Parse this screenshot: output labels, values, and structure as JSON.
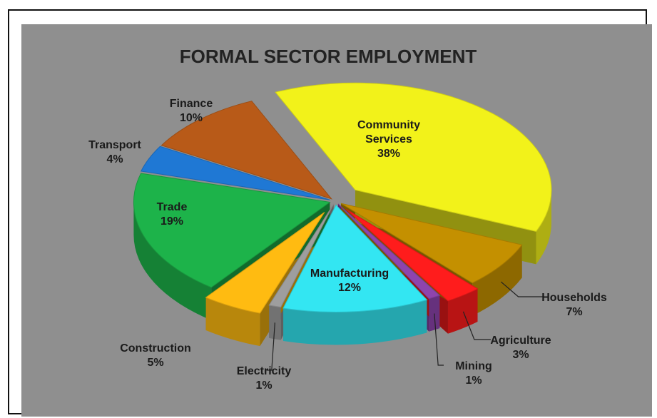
{
  "chart_data": {
    "type": "pie",
    "title": "FORMAL SECTOR EMPLOYMENT",
    "categories": [
      "Community Services",
      "Households",
      "Agriculture",
      "Mining",
      "Manufacturing",
      "Electricity",
      "Construction",
      "Trade",
      "Transport",
      "Finance"
    ],
    "values": [
      38,
      7,
      3,
      1,
      12,
      1,
      5,
      19,
      4,
      10
    ],
    "value_labels": [
      "38%",
      "7%",
      "3%",
      "1%",
      "12%",
      "1%",
      "5%",
      "19%",
      "4%",
      "10%"
    ],
    "colors": [
      "#f2f21a",
      "#c49000",
      "#ff1c1c",
      "#8e44ad",
      "#33e6f2",
      "#9e9e9e",
      "#ffbb11",
      "#1db34a",
      "#1f78d4",
      "#b85a18"
    ],
    "legend": "none",
    "grid": false,
    "three_d": true
  }
}
